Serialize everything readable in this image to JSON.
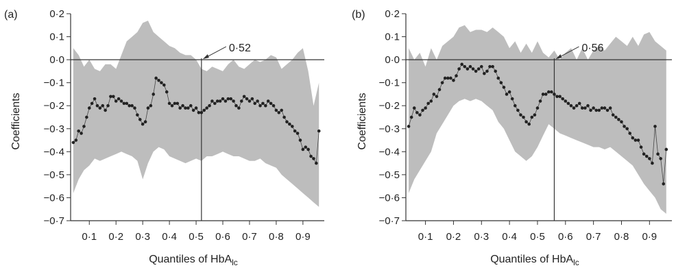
{
  "chart_data": [
    {
      "type": "line",
      "panel": "(a)",
      "xlabel_main": "Quantiles of HbA",
      "xlabel_sub": "lc",
      "ylabel": "Coefficients",
      "xlim": [
        0.03,
        0.98
      ],
      "ylim": [
        -0.7,
        0.2
      ],
      "xticks": [
        0.1,
        0.2,
        0.3,
        0.4,
        0.5,
        0.6,
        0.7,
        0.8,
        0.9
      ],
      "xtick_labels": [
        "0·1",
        "0·2",
        "0·3",
        "0·4",
        "0·5",
        "0·6",
        "0·7",
        "0·8",
        "0·9"
      ],
      "yticks": [
        0.2,
        0.1,
        0.0,
        -0.1,
        -0.2,
        -0.3,
        -0.4,
        -0.5,
        -0.6,
        -0.7
      ],
      "ytick_labels": [
        "0·2",
        "0·1",
        "0·0",
        "−0·1",
        "−0·2",
        "−0·3",
        "−0·4",
        "−0·5",
        "−0·6",
        "−0·7"
      ],
      "vline": 0.52,
      "annotation": "0·52",
      "band_color": "#bdbdbd",
      "point_color": "#222222",
      "series": [
        {
          "x": [
            0.04,
            0.05,
            0.06,
            0.07,
            0.08,
            0.09,
            0.1,
            0.11,
            0.12,
            0.13,
            0.14,
            0.15,
            0.16,
            0.17,
            0.18,
            0.19,
            0.2,
            0.21,
            0.22,
            0.23,
            0.24,
            0.25,
            0.26,
            0.27,
            0.28,
            0.29,
            0.3,
            0.31,
            0.32,
            0.33,
            0.34,
            0.35,
            0.36,
            0.37,
            0.38,
            0.39,
            0.4,
            0.41,
            0.42,
            0.43,
            0.44,
            0.45,
            0.46,
            0.47,
            0.48,
            0.49,
            0.5,
            0.51,
            0.52,
            0.53,
            0.54,
            0.55,
            0.56,
            0.57,
            0.58,
            0.59,
            0.6,
            0.61,
            0.62,
            0.63,
            0.64,
            0.65,
            0.66,
            0.67,
            0.68,
            0.69,
            0.7,
            0.71,
            0.72,
            0.73,
            0.74,
            0.75,
            0.76,
            0.77,
            0.78,
            0.79,
            0.8,
            0.81,
            0.82,
            0.83,
            0.84,
            0.85,
            0.86,
            0.87,
            0.88,
            0.89,
            0.9,
            0.91,
            0.92,
            0.93,
            0.94,
            0.95,
            0.96
          ],
          "y": [
            -0.36,
            -0.35,
            -0.31,
            -0.32,
            -0.29,
            -0.25,
            -0.21,
            -0.19,
            -0.17,
            -0.2,
            -0.21,
            -0.2,
            -0.22,
            -0.2,
            -0.16,
            -0.16,
            -0.18,
            -0.17,
            -0.18,
            -0.19,
            -0.19,
            -0.2,
            -0.2,
            -0.21,
            -0.24,
            -0.26,
            -0.28,
            -0.27,
            -0.21,
            -0.2,
            -0.15,
            -0.08,
            -0.09,
            -0.1,
            -0.11,
            -0.14,
            -0.19,
            -0.2,
            -0.19,
            -0.19,
            -0.21,
            -0.2,
            -0.21,
            -0.21,
            -0.2,
            -0.22,
            -0.21,
            -0.23,
            -0.23,
            -0.22,
            -0.21,
            -0.2,
            -0.18,
            -0.19,
            -0.18,
            -0.18,
            -0.17,
            -0.18,
            -0.17,
            -0.17,
            -0.18,
            -0.2,
            -0.21,
            -0.18,
            -0.16,
            -0.17,
            -0.18,
            -0.17,
            -0.19,
            -0.18,
            -0.2,
            -0.19,
            -0.2,
            -0.18,
            -0.19,
            -0.2,
            -0.22,
            -0.23,
            -0.22,
            -0.25,
            -0.27,
            -0.28,
            -0.29,
            -0.31,
            -0.32,
            -0.35,
            -0.39,
            -0.38,
            -0.39,
            -0.42,
            -0.43,
            -0.45,
            -0.31
          ]
        }
      ],
      "band": {
        "x": [
          0.04,
          0.06,
          0.08,
          0.1,
          0.12,
          0.14,
          0.16,
          0.18,
          0.2,
          0.22,
          0.24,
          0.26,
          0.28,
          0.3,
          0.32,
          0.34,
          0.36,
          0.38,
          0.4,
          0.42,
          0.44,
          0.46,
          0.48,
          0.5,
          0.52,
          0.54,
          0.56,
          0.58,
          0.6,
          0.62,
          0.64,
          0.66,
          0.68,
          0.7,
          0.72,
          0.74,
          0.76,
          0.78,
          0.8,
          0.82,
          0.84,
          0.86,
          0.88,
          0.9,
          0.92,
          0.94,
          0.96
        ],
        "upper": [
          0.05,
          0.02,
          -0.03,
          0.0,
          -0.04,
          -0.05,
          -0.02,
          -0.02,
          -0.04,
          0.02,
          0.08,
          0.1,
          0.12,
          0.16,
          0.17,
          0.12,
          0.1,
          0.08,
          0.06,
          0.05,
          0.03,
          0.02,
          0.02,
          0.0,
          -0.04,
          -0.05,
          -0.03,
          -0.04,
          -0.05,
          -0.02,
          0.0,
          -0.03,
          -0.04,
          -0.02,
          0.0,
          -0.01,
          0.0,
          0.02,
          0.01,
          -0.04,
          -0.02,
          0.0,
          0.03,
          0.05,
          -0.05,
          -0.2,
          -0.1
        ],
        "lower": [
          -0.58,
          -0.52,
          -0.48,
          -0.46,
          -0.43,
          -0.44,
          -0.43,
          -0.42,
          -0.41,
          -0.4,
          -0.41,
          -0.42,
          -0.44,
          -0.52,
          -0.45,
          -0.4,
          -0.38,
          -0.39,
          -0.42,
          -0.43,
          -0.44,
          -0.45,
          -0.44,
          -0.43,
          -0.44,
          -0.42,
          -0.42,
          -0.41,
          -0.4,
          -0.41,
          -0.42,
          -0.42,
          -0.43,
          -0.44,
          -0.44,
          -0.43,
          -0.45,
          -0.46,
          -0.47,
          -0.5,
          -0.52,
          -0.54,
          -0.56,
          -0.58,
          -0.6,
          -0.62,
          -0.64
        ]
      }
    },
    {
      "type": "line",
      "panel": "(b)",
      "xlabel_main": "Quantiles of HbA",
      "xlabel_sub": "lc",
      "ylabel": "Coefficients",
      "xlim": [
        0.03,
        0.98
      ],
      "ylim": [
        -0.7,
        0.2
      ],
      "xticks": [
        0.1,
        0.2,
        0.3,
        0.4,
        0.5,
        0.6,
        0.7,
        0.8,
        0.9
      ],
      "xtick_labels": [
        "0·1",
        "0·2",
        "0·3",
        "0·4",
        "0·5",
        "0·6",
        "0·7",
        "0·8",
        "0·9"
      ],
      "yticks": [
        0.2,
        0.1,
        0.0,
        -0.1,
        -0.2,
        -0.3,
        -0.4,
        -0.5,
        -0.6,
        -0.7
      ],
      "ytick_labels": [
        "0·2",
        "0·1",
        "0·0",
        "−0·1",
        "−0·2",
        "−0·3",
        "−0·4",
        "−0·5",
        "−0·6",
        "−0·7"
      ],
      "vline": 0.56,
      "annotation": "0·56",
      "band_color": "#bdbdbd",
      "point_color": "#222222",
      "series": [
        {
          "x": [
            0.04,
            0.05,
            0.06,
            0.07,
            0.08,
            0.09,
            0.1,
            0.11,
            0.12,
            0.13,
            0.14,
            0.15,
            0.16,
            0.17,
            0.18,
            0.19,
            0.2,
            0.21,
            0.22,
            0.23,
            0.24,
            0.25,
            0.26,
            0.27,
            0.28,
            0.29,
            0.3,
            0.31,
            0.32,
            0.33,
            0.34,
            0.35,
            0.36,
            0.37,
            0.38,
            0.39,
            0.4,
            0.41,
            0.42,
            0.43,
            0.44,
            0.45,
            0.46,
            0.47,
            0.48,
            0.49,
            0.5,
            0.51,
            0.52,
            0.53,
            0.54,
            0.55,
            0.56,
            0.57,
            0.58,
            0.59,
            0.6,
            0.61,
            0.62,
            0.63,
            0.64,
            0.65,
            0.66,
            0.67,
            0.68,
            0.69,
            0.7,
            0.71,
            0.72,
            0.73,
            0.74,
            0.75,
            0.76,
            0.77,
            0.78,
            0.79,
            0.8,
            0.81,
            0.82,
            0.83,
            0.84,
            0.85,
            0.86,
            0.87,
            0.88,
            0.89,
            0.9,
            0.91,
            0.92,
            0.93,
            0.94,
            0.95,
            0.96
          ],
          "y": [
            -0.29,
            -0.25,
            -0.21,
            -0.23,
            -0.24,
            -0.22,
            -0.21,
            -0.19,
            -0.18,
            -0.15,
            -0.16,
            -0.13,
            -0.1,
            -0.08,
            -0.08,
            -0.08,
            -0.09,
            -0.07,
            -0.04,
            -0.02,
            -0.03,
            -0.04,
            -0.03,
            -0.04,
            -0.05,
            -0.04,
            -0.03,
            -0.06,
            -0.05,
            -0.03,
            -0.03,
            -0.05,
            -0.08,
            -0.1,
            -0.12,
            -0.15,
            -0.14,
            -0.17,
            -0.2,
            -0.22,
            -0.24,
            -0.25,
            -0.27,
            -0.28,
            -0.25,
            -0.24,
            -0.21,
            -0.18,
            -0.15,
            -0.15,
            -0.14,
            -0.14,
            -0.15,
            -0.16,
            -0.16,
            -0.17,
            -0.18,
            -0.19,
            -0.2,
            -0.21,
            -0.2,
            -0.19,
            -0.21,
            -0.21,
            -0.2,
            -0.22,
            -0.21,
            -0.22,
            -0.22,
            -0.21,
            -0.21,
            -0.22,
            -0.21,
            -0.24,
            -0.25,
            -0.26,
            -0.27,
            -0.29,
            -0.3,
            -0.32,
            -0.34,
            -0.35,
            -0.35,
            -0.38,
            -0.41,
            -0.42,
            -0.43,
            -0.45,
            -0.29,
            -0.41,
            -0.43,
            -0.54,
            -0.39
          ]
        }
      ],
      "band": {
        "x": [
          0.04,
          0.06,
          0.08,
          0.1,
          0.12,
          0.14,
          0.16,
          0.18,
          0.2,
          0.22,
          0.24,
          0.26,
          0.28,
          0.3,
          0.32,
          0.34,
          0.36,
          0.38,
          0.4,
          0.42,
          0.44,
          0.46,
          0.48,
          0.5,
          0.52,
          0.54,
          0.56,
          0.58,
          0.6,
          0.62,
          0.64,
          0.66,
          0.68,
          0.7,
          0.72,
          0.74,
          0.76,
          0.78,
          0.8,
          0.82,
          0.84,
          0.86,
          0.88,
          0.9,
          0.92,
          0.94,
          0.96
        ],
        "upper": [
          0.05,
          0.0,
          0.03,
          -0.03,
          0.05,
          0.0,
          0.06,
          0.08,
          0.1,
          0.14,
          0.15,
          0.12,
          0.13,
          0.13,
          0.12,
          0.14,
          0.12,
          0.1,
          0.05,
          0.08,
          0.03,
          0.07,
          0.03,
          0.08,
          0.03,
          0.01,
          0.04,
          0.0,
          0.03,
          0.05,
          0.0,
          0.05,
          0.0,
          0.04,
          0.06,
          0.04,
          0.07,
          0.1,
          0.08,
          0.06,
          0.1,
          0.06,
          0.11,
          0.12,
          0.08,
          0.06,
          0.04
        ],
        "lower": [
          -0.58,
          -0.52,
          -0.48,
          -0.44,
          -0.4,
          -0.32,
          -0.28,
          -0.24,
          -0.2,
          -0.18,
          -0.17,
          -0.18,
          -0.17,
          -0.18,
          -0.2,
          -0.22,
          -0.27,
          -0.3,
          -0.35,
          -0.4,
          -0.42,
          -0.44,
          -0.42,
          -0.38,
          -0.33,
          -0.28,
          -0.3,
          -0.32,
          -0.33,
          -0.34,
          -0.35,
          -0.36,
          -0.37,
          -0.38,
          -0.38,
          -0.39,
          -0.38,
          -0.4,
          -0.42,
          -0.44,
          -0.46,
          -0.5,
          -0.54,
          -0.57,
          -0.6,
          -0.65,
          -0.67
        ]
      }
    }
  ]
}
